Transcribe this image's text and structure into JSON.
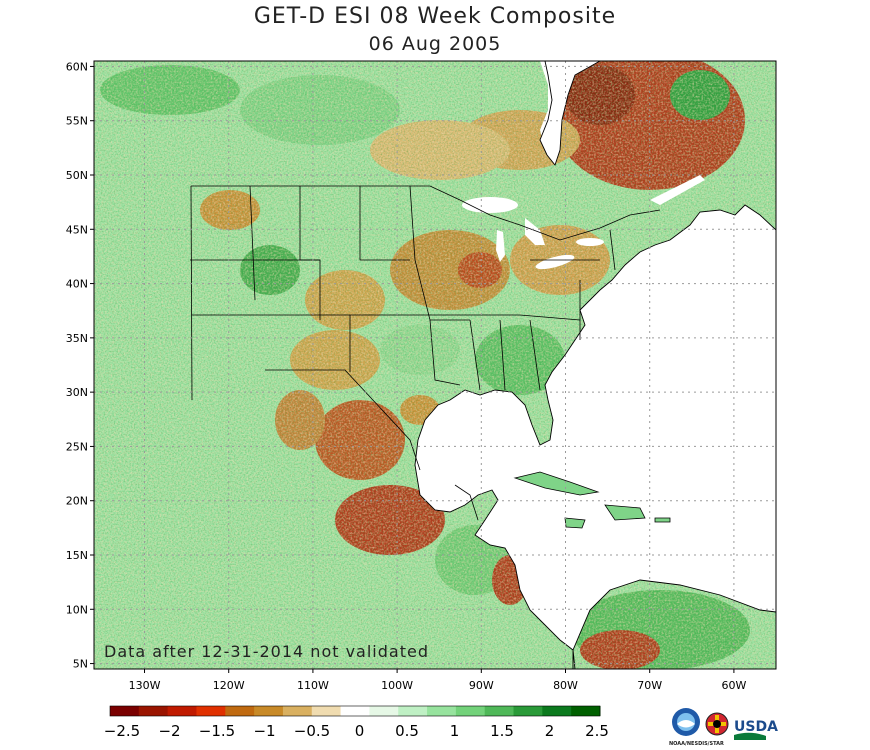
{
  "title": "GET-D ESI 08 Week Composite",
  "date": "06 Aug 2005",
  "note": "Data after 12-31-2014 not validated",
  "map": {
    "lon_range": [
      -136,
      -55
    ],
    "lat_range": [
      4.5,
      60.5
    ],
    "lat_ticks": [
      {
        "value": 60,
        "label": "60N"
      },
      {
        "value": 55,
        "label": "55N"
      },
      {
        "value": 50,
        "label": "50N"
      },
      {
        "value": 45,
        "label": "45N"
      },
      {
        "value": 40,
        "label": "40N"
      },
      {
        "value": 35,
        "label": "35N"
      },
      {
        "value": 30,
        "label": "30N"
      },
      {
        "value": 25,
        "label": "25N"
      },
      {
        "value": 20,
        "label": "20N"
      },
      {
        "value": 15,
        "label": "15N"
      },
      {
        "value": 10,
        "label": "10N"
      },
      {
        "value": 5,
        "label": "5N"
      }
    ],
    "lon_ticks": [
      {
        "value": -130,
        "label": "130W"
      },
      {
        "value": -120,
        "label": "120W"
      },
      {
        "value": -110,
        "label": "110W"
      },
      {
        "value": -100,
        "label": "100W"
      },
      {
        "value": -90,
        "label": "90W"
      },
      {
        "value": -80,
        "label": "80W"
      },
      {
        "value": -70,
        "label": "70W"
      },
      {
        "value": -60,
        "label": "60W"
      }
    ],
    "grid": "dotted"
  },
  "colorbar": {
    "labels": [
      "−2.5",
      "−2",
      "−1.5",
      "−1",
      "−0.5",
      "0",
      "0.5",
      "1",
      "1.5",
      "2",
      "2.5"
    ],
    "colors": [
      "#7a0000",
      "#9a1400",
      "#c01a00",
      "#e03000",
      "#c06a10",
      "#c88a28",
      "#d9b060",
      "#f0dcb0",
      "#ffffff",
      "#e6f8e6",
      "#bff0c4",
      "#97e39e",
      "#73d27a",
      "#4fb858",
      "#2a9a38",
      "#0c7a1e",
      "#006000"
    ]
  },
  "logos": {
    "noaa": "NOAA/NESDIS/STAR",
    "usda": "USDA"
  }
}
